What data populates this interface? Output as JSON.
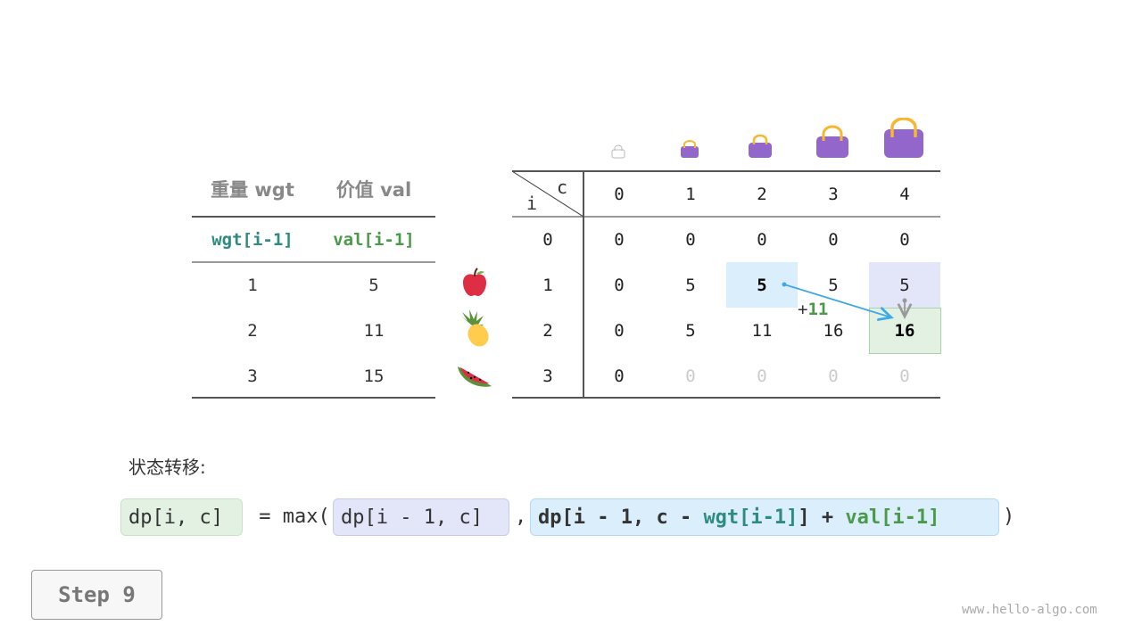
{
  "left_table": {
    "headers": [
      "重量 wgt",
      "价值 val"
    ],
    "subheaders": [
      "wgt[i-1]",
      "val[i-1]"
    ],
    "rows": [
      [
        "1",
        "5"
      ],
      [
        "2",
        "11"
      ],
      [
        "3",
        "15"
      ]
    ],
    "fruit_icons": [
      "apple-icon",
      "pineapple-icon",
      "watermelon-icon"
    ]
  },
  "dp_table": {
    "corner_c": "c",
    "corner_i": "i",
    "col_headers": [
      "0",
      "1",
      "2",
      "3",
      "4"
    ],
    "row_headers": [
      "0",
      "1",
      "2",
      "3"
    ],
    "rows": [
      [
        "0",
        "0",
        "0",
        "0",
        "0"
      ],
      [
        "0",
        "5",
        "5",
        "5",
        "5"
      ],
      [
        "0",
        "5",
        "11",
        "16",
        "16"
      ],
      [
        "0",
        "0",
        "0",
        "0",
        "0"
      ]
    ],
    "bag_icons": [
      "bag-icon-0",
      "bag-icon-1",
      "bag-icon-2",
      "bag-icon-3",
      "bag-icon-4"
    ],
    "highlight_colors": {
      "value_source": "#dbeefc",
      "skip_source": "#e2e6f8",
      "target": "#e3f1e3"
    },
    "transition_label_sign": "+",
    "transition_label_value": "11"
  },
  "formula": {
    "label": "状态转移:",
    "lhs": "dp[i, c]",
    "eq": " = max(",
    "opt1": "dp[i - 1, c]",
    "comma": ",",
    "opt2_a": "dp[i - 1, c - ",
    "opt2_wgt": "wgt[i-1]",
    "opt2_b": "] + ",
    "opt2_val": "val[i-1]",
    "close": ")"
  },
  "step_button": "Step 9",
  "watermark": "www.hello-algo.com"
}
